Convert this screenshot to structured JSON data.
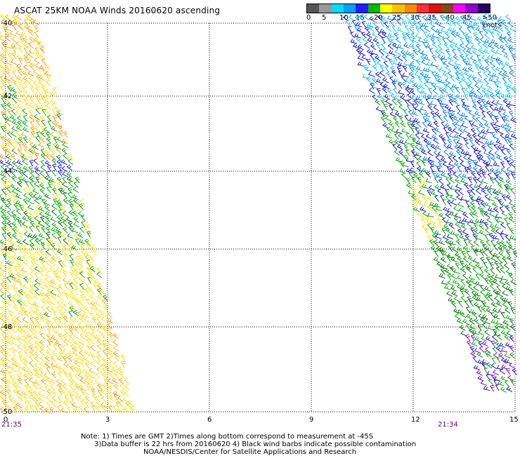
{
  "title": "ASCAT 25KM NOAA Winds 20160620 ascending",
  "legend": {
    "labels": [
      "0",
      "5",
      "10",
      "15",
      "20",
      "25",
      "30",
      "35",
      "40",
      "45",
      ">50 knots"
    ],
    "colors": [
      "#555555",
      "#999999",
      "#00dcff",
      "#00a0ff",
      "#2020ff",
      "#00bb00",
      "#ffff00",
      "#ffc000",
      "#ff8800",
      "#ff3030",
      "#dd1010",
      "#8b4513",
      "#ff00ff",
      "#9400d3",
      "#2a0060"
    ]
  },
  "axes": {
    "x_ticks": [
      "0",
      "3",
      "6",
      "9",
      "12",
      "15"
    ],
    "y_ticks": [
      "-40",
      "-42",
      "-44",
      "-46",
      "-48",
      "-50"
    ]
  },
  "pass_times": {
    "left": "21:35",
    "right": "21:34"
  },
  "notes": {
    "line1": "Note: 1) Times are GMT 2)Times along bottom correspond to measurement at -45S",
    "line2": "3)Data buffer is 22 hrs from 20160620 4) Black wind barbs indicate possible contamination",
    "line3": "NOAA/NESDIS/Center for Satellite Applications and Research"
  }
}
